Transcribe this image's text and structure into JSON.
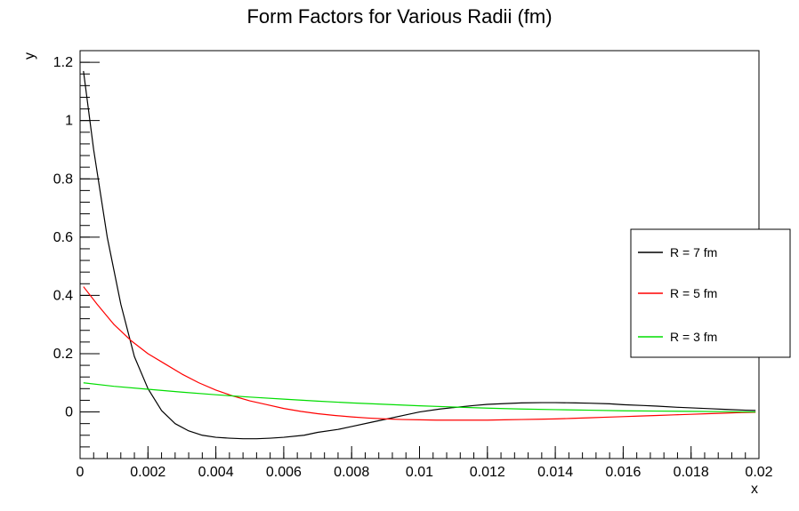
{
  "chart_data": {
    "type": "line",
    "title": "Form Factors for Various Radii (fm)",
    "xlabel": "x",
    "ylabel": "y",
    "xlim": [
      0,
      0.02
    ],
    "ylim": [
      -0.16,
      1.24
    ],
    "xticks": [
      0,
      0.002,
      0.004,
      0.006,
      0.008,
      0.01,
      0.012,
      0.014,
      0.016,
      0.018,
      0.02
    ],
    "xtick_labels": [
      "0",
      "0.002",
      "0.004",
      "0.006",
      "0.008",
      "0.01",
      "0.012",
      "0.014",
      "0.016",
      "0.018",
      "0.02"
    ],
    "yticks": [
      0,
      0.2,
      0.4,
      0.6,
      0.8,
      1,
      1.2
    ],
    "ytick_labels": [
      "0",
      "0.2",
      "0.4",
      "0.6",
      "0.8",
      "1",
      "1.2"
    ],
    "grid": false,
    "legend_position": "right",
    "series": [
      {
        "name": "R = 7 fm",
        "color": "#000000",
        "x": [
          0.0001,
          0.0004,
          0.0008,
          0.0012,
          0.0016,
          0.002,
          0.0024,
          0.0028,
          0.0032,
          0.0036,
          0.004,
          0.0044,
          0.0048,
          0.0052,
          0.0056,
          0.006,
          0.0066,
          0.007,
          0.0076,
          0.008,
          0.0086,
          0.009,
          0.0096,
          0.01,
          0.0106,
          0.011,
          0.0116,
          0.012,
          0.0126,
          0.013,
          0.0136,
          0.014,
          0.0146,
          0.015,
          0.0156,
          0.016,
          0.0166,
          0.017,
          0.0176,
          0.018,
          0.0186,
          0.019,
          0.0196,
          0.0199
        ],
        "y": [
          1.17,
          0.9,
          0.6,
          0.37,
          0.19,
          0.08,
          0.005,
          -0.04,
          -0.065,
          -0.08,
          -0.087,
          -0.09,
          -0.092,
          -0.092,
          -0.09,
          -0.087,
          -0.08,
          -0.07,
          -0.06,
          -0.05,
          -0.035,
          -0.025,
          -0.01,
          0.0,
          0.01,
          0.015,
          0.022,
          0.026,
          0.029,
          0.031,
          0.032,
          0.032,
          0.031,
          0.03,
          0.028,
          0.025,
          0.022,
          0.02,
          0.016,
          0.014,
          0.011,
          0.009,
          0.006,
          0.005
        ]
      },
      {
        "name": "R = 5 fm",
        "color": "#ff0000",
        "x": [
          0.0001,
          0.0005,
          0.001,
          0.0015,
          0.002,
          0.0025,
          0.003,
          0.0035,
          0.004,
          0.0045,
          0.005,
          0.0055,
          0.006,
          0.0065,
          0.007,
          0.0075,
          0.008,
          0.0085,
          0.009,
          0.0095,
          0.01,
          0.0105,
          0.011,
          0.0115,
          0.012,
          0.0125,
          0.013,
          0.0135,
          0.014,
          0.0145,
          0.015,
          0.0155,
          0.016,
          0.0165,
          0.017,
          0.0175,
          0.018,
          0.0185,
          0.019,
          0.0195,
          0.0199
        ],
        "y": [
          0.43,
          0.37,
          0.3,
          0.245,
          0.2,
          0.165,
          0.13,
          0.1,
          0.075,
          0.055,
          0.038,
          0.025,
          0.012,
          0.002,
          -0.006,
          -0.012,
          -0.017,
          -0.021,
          -0.024,
          -0.026,
          -0.027,
          -0.028,
          -0.028,
          -0.028,
          -0.028,
          -0.027,
          -0.026,
          -0.025,
          -0.024,
          -0.022,
          -0.02,
          -0.018,
          -0.016,
          -0.014,
          -0.012,
          -0.01,
          -0.008,
          -0.006,
          -0.004,
          -0.002,
          -0.001
        ]
      },
      {
        "name": "R = 3 fm",
        "color": "#00dd00",
        "x": [
          0.0001,
          0.001,
          0.002,
          0.003,
          0.004,
          0.005,
          0.006,
          0.007,
          0.008,
          0.009,
          0.01,
          0.011,
          0.012,
          0.013,
          0.014,
          0.015,
          0.016,
          0.017,
          0.018,
          0.019,
          0.0199
        ],
        "y": [
          0.1,
          0.088,
          0.078,
          0.068,
          0.059,
          0.051,
          0.044,
          0.037,
          0.031,
          0.026,
          0.021,
          0.017,
          0.013,
          0.01,
          0.008,
          0.006,
          0.004,
          0.003,
          0.002,
          0.001,
          0.0
        ]
      }
    ]
  }
}
